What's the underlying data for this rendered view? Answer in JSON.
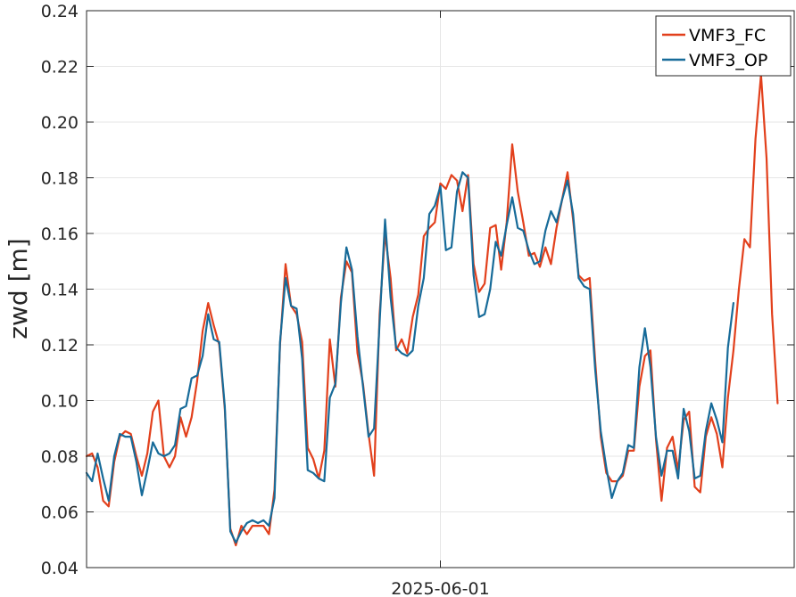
{
  "chart_data": {
    "type": "line",
    "xlabel": "",
    "ylabel": "zwd [m]",
    "xticks": [
      {
        "at": 64,
        "label": "2025-06-01"
      }
    ],
    "x_range": [
      0,
      128
    ],
    "ylim": [
      0.04,
      0.24
    ],
    "yticks": [
      0.04,
      0.06,
      0.08,
      0.1,
      0.12,
      0.14,
      0.16,
      0.18,
      0.2,
      0.22,
      0.24
    ],
    "grid": true,
    "legend_position": "top-right",
    "series": [
      {
        "name": "VMF3_FC",
        "color": "#e2401c",
        "values": [
          0.08,
          0.081,
          0.076,
          0.064,
          0.062,
          0.078,
          0.087,
          0.089,
          0.088,
          0.08,
          0.073,
          0.081,
          0.096,
          0.1,
          0.08,
          0.076,
          0.08,
          0.094,
          0.087,
          0.094,
          0.107,
          0.125,
          0.135,
          0.127,
          0.12,
          0.097,
          0.054,
          0.048,
          0.055,
          0.052,
          0.055,
          0.055,
          0.055,
          0.052,
          0.068,
          0.12,
          0.149,
          0.134,
          0.131,
          0.121,
          0.083,
          0.079,
          0.072,
          0.082,
          0.122,
          0.105,
          0.137,
          0.15,
          0.146,
          0.117,
          0.106,
          0.088,
          0.073,
          0.131,
          0.16,
          0.144,
          0.118,
          0.122,
          0.117,
          0.13,
          0.138,
          0.159,
          0.162,
          0.164,
          0.178,
          0.176,
          0.181,
          0.179,
          0.168,
          0.181,
          0.149,
          0.139,
          0.142,
          0.162,
          0.163,
          0.147,
          0.164,
          0.192,
          0.175,
          0.164,
          0.152,
          0.153,
          0.148,
          0.155,
          0.149,
          0.162,
          0.172,
          0.182,
          0.165,
          0.145,
          0.143,
          0.144,
          0.114,
          0.087,
          0.074,
          0.071,
          0.071,
          0.073,
          0.082,
          0.082,
          0.105,
          0.116,
          0.118,
          0.086,
          0.064,
          0.083,
          0.087,
          0.075,
          0.093,
          0.096,
          0.069,
          0.067,
          0.087,
          0.094,
          0.088,
          0.076,
          0.101,
          0.118,
          0.14,
          0.158,
          0.155,
          0.194,
          0.217,
          0.187,
          0.131,
          0.099
        ]
      },
      {
        "name": "VMF3_OP",
        "color": "#176b99",
        "values": [
          0.074,
          0.071,
          0.081,
          0.072,
          0.064,
          0.08,
          0.088,
          0.087,
          0.087,
          0.078,
          0.066,
          0.075,
          0.085,
          0.081,
          0.08,
          0.081,
          0.084,
          0.097,
          0.098,
          0.108,
          0.109,
          0.116,
          0.131,
          0.122,
          0.121,
          0.098,
          0.053,
          0.049,
          0.053,
          0.056,
          0.057,
          0.056,
          0.057,
          0.055,
          0.065,
          0.121,
          0.144,
          0.134,
          0.133,
          0.115,
          0.075,
          0.074,
          0.072,
          0.071,
          0.101,
          0.106,
          0.135,
          0.155,
          0.147,
          0.123,
          0.105,
          0.087,
          0.09,
          0.128,
          0.165,
          0.137,
          0.119,
          0.117,
          0.116,
          0.118,
          0.134,
          0.144,
          0.167,
          0.17,
          0.177,
          0.154,
          0.155,
          0.175,
          0.182,
          0.18,
          0.145,
          0.13,
          0.131,
          0.14,
          0.157,
          0.152,
          0.163,
          0.173,
          0.162,
          0.161,
          0.154,
          0.149,
          0.15,
          0.161,
          0.168,
          0.164,
          0.172,
          0.179,
          0.167,
          0.144,
          0.141,
          0.14,
          0.111,
          0.089,
          0.076,
          0.065,
          0.071,
          0.074,
          0.084,
          0.083,
          0.112,
          0.126,
          0.112,
          0.087,
          0.073,
          0.082,
          0.082,
          0.072,
          0.097,
          0.089,
          0.072,
          0.073,
          0.089,
          0.099,
          0.093,
          0.085,
          0.119,
          0.135
        ]
      }
    ]
  }
}
